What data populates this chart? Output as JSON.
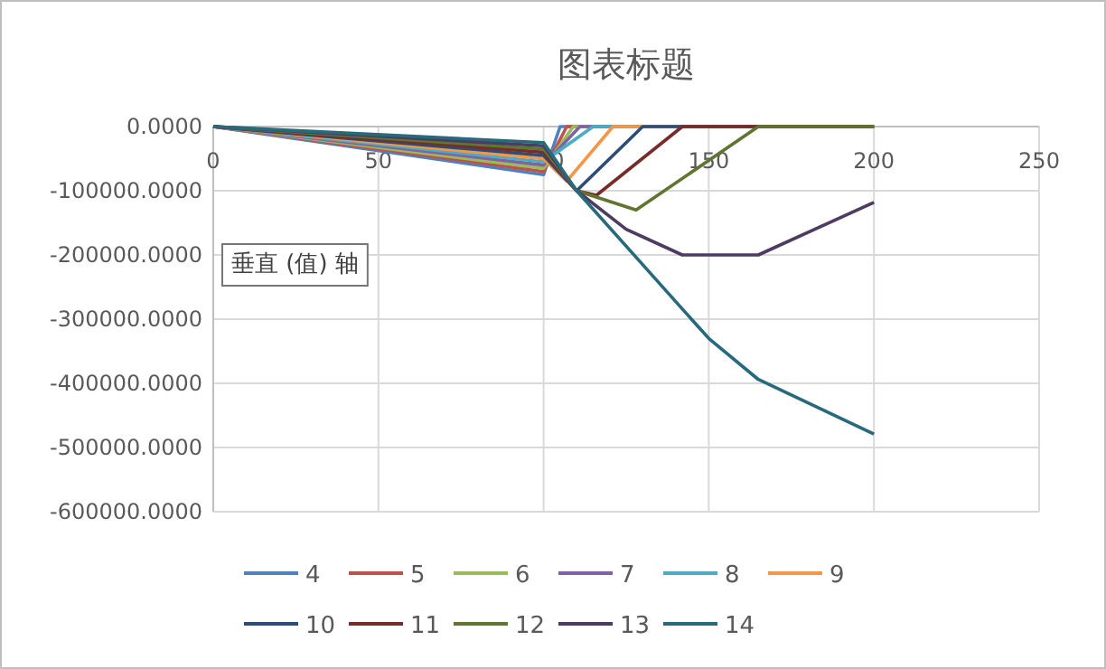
{
  "chart_data": {
    "type": "line",
    "title": "图表标题",
    "xlim": [
      0,
      250
    ],
    "xticks": [
      0,
      50,
      100,
      150,
      200,
      250
    ],
    "ylim": [
      -600000,
      0
    ],
    "yticks": [
      {
        "value": 0,
        "label": "0.0000"
      },
      {
        "value": -100000,
        "label": "-100000.0000"
      },
      {
        "value": -200000,
        "label": "-200000.0000"
      },
      {
        "value": -300000,
        "label": "-300000.0000"
      },
      {
        "value": -400000,
        "label": "-400000.0000"
      },
      {
        "value": -500000,
        "label": "-500000.0000"
      },
      {
        "value": -600000,
        "label": "-600000.0000"
      }
    ],
    "grid": true,
    "legend": "bottom",
    "marker": "none",
    "line_style": "solid",
    "annotations": [
      "垂直 (值) 轴"
    ],
    "series": [
      {
        "name": "4",
        "color": "#4f81bd",
        "x": [
          0,
          100,
          105,
          200
        ],
        "values": [
          0,
          -75000,
          0,
          0
        ]
      },
      {
        "name": "5",
        "color": "#c0504d",
        "x": [
          0,
          100,
          107,
          200
        ],
        "values": [
          0,
          -70000,
          0,
          0
        ]
      },
      {
        "name": "6",
        "color": "#9bbb59",
        "x": [
          0,
          100,
          109,
          200
        ],
        "values": [
          0,
          -65000,
          0,
          0
        ]
      },
      {
        "name": "7",
        "color": "#8064a2",
        "x": [
          0,
          100,
          111,
          200
        ],
        "values": [
          0,
          -60000,
          0,
          0
        ]
      },
      {
        "name": "8",
        "color": "#4bacc6",
        "x": [
          0,
          100,
          115,
          200
        ],
        "values": [
          0,
          -55000,
          0,
          0
        ]
      },
      {
        "name": "9",
        "color": "#f79646",
        "x": [
          0,
          100,
          107,
          121,
          200
        ],
        "values": [
          0,
          -50000,
          -85000,
          0,
          0
        ]
      },
      {
        "name": "10",
        "color": "#2c4d75",
        "x": [
          0,
          100,
          110,
          130,
          200
        ],
        "values": [
          0,
          -45000,
          -100000,
          0,
          0
        ]
      },
      {
        "name": "11",
        "color": "#772c2a",
        "x": [
          0,
          100,
          110,
          116,
          142,
          200
        ],
        "values": [
          0,
          -40000,
          -100000,
          -107000,
          0,
          0
        ]
      },
      {
        "name": "12",
        "color": "#5f7530",
        "x": [
          0,
          100,
          110,
          128,
          165,
          200
        ],
        "values": [
          0,
          -35000,
          -100000,
          -130000,
          0,
          0
        ]
      },
      {
        "name": "13",
        "color": "#4d3b62",
        "x": [
          0,
          100,
          110,
          125,
          142,
          165,
          200
        ],
        "values": [
          0,
          -30000,
          -100000,
          -160000,
          -200000,
          -200000,
          -118000
        ]
      },
      {
        "name": "14",
        "color": "#276a7c",
        "x": [
          0,
          100,
          110,
          143,
          150,
          165,
          200
        ],
        "values": [
          0,
          -25000,
          -100000,
          -290000,
          -330000,
          -394000,
          -479000
        ]
      }
    ]
  }
}
